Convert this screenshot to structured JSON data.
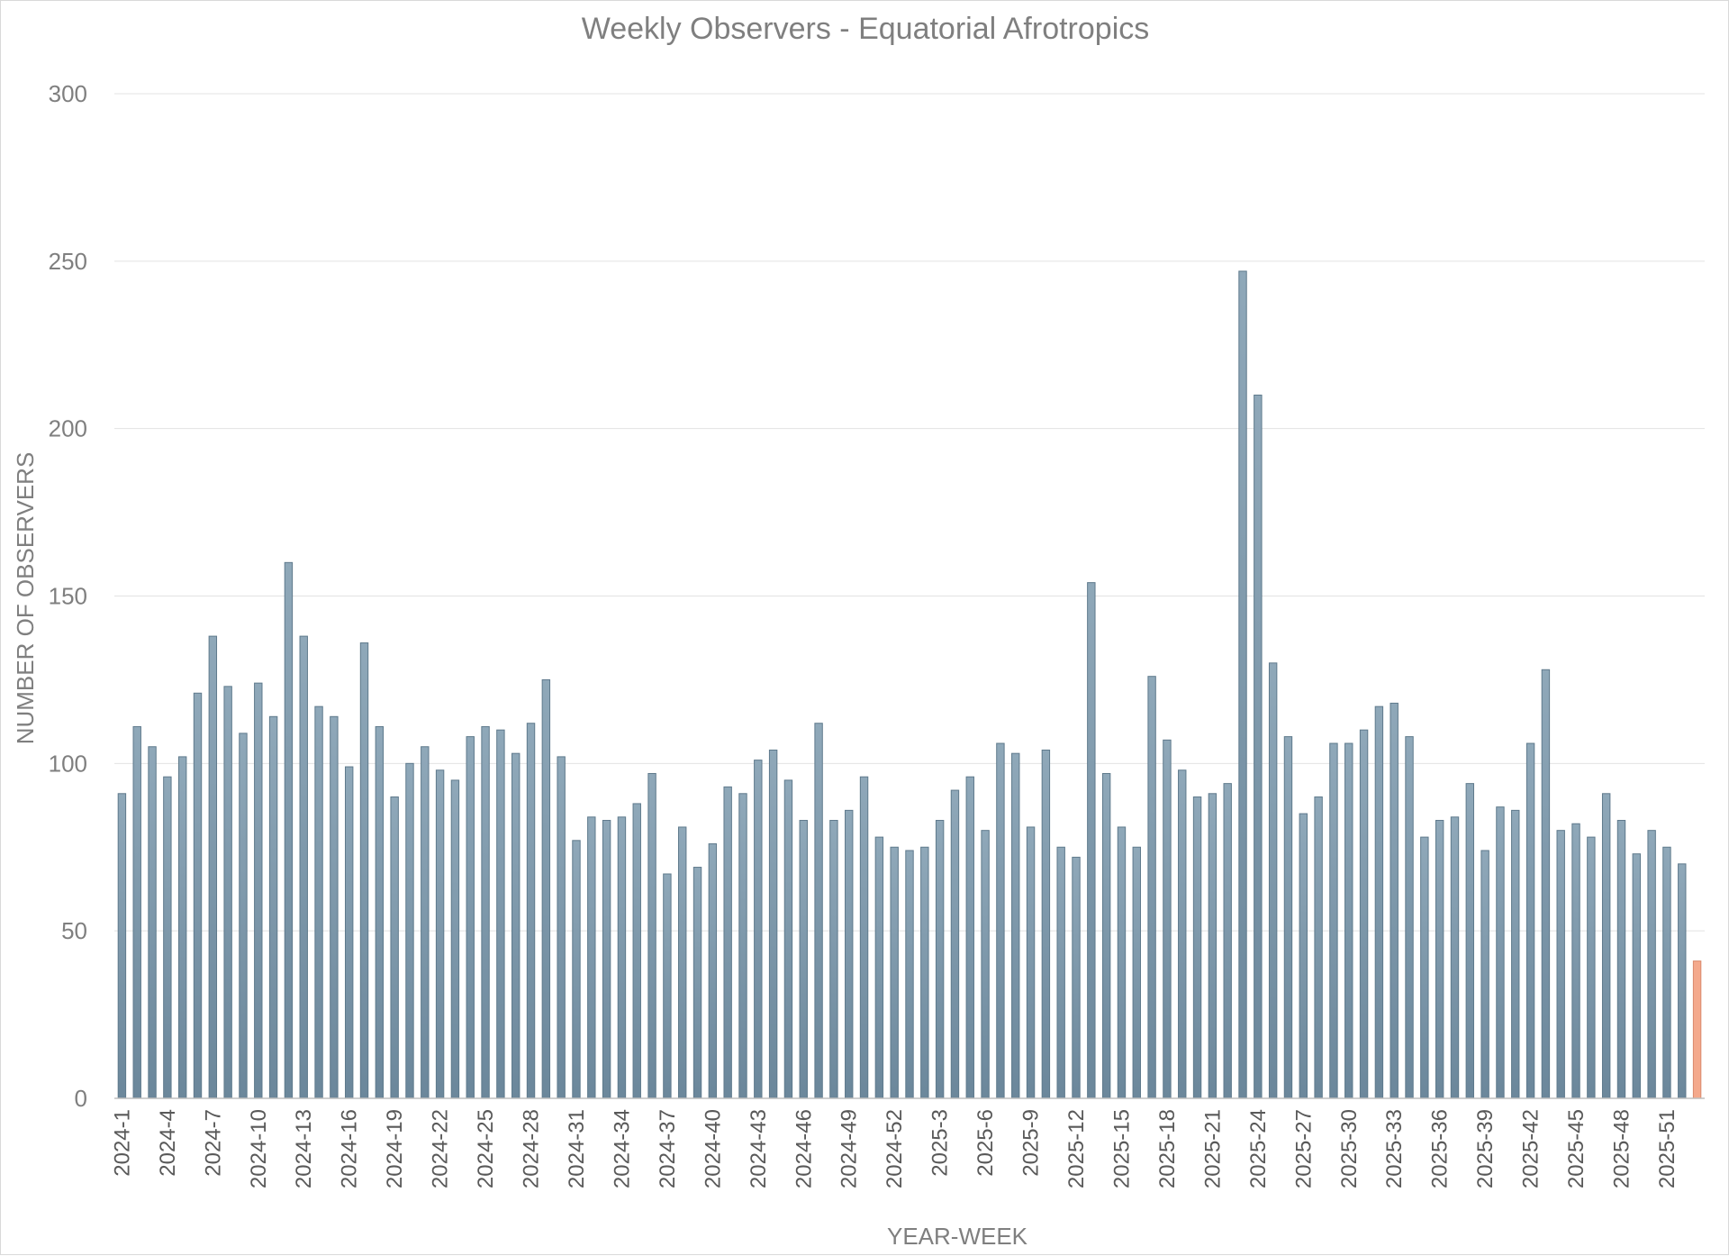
{
  "chart_data": {
    "type": "bar",
    "title": "Weekly Observers - Equatorial Afrotropics",
    "xlabel": "YEAR-WEEK",
    "ylabel": "NUMBER OF OBSERVERS",
    "ylim": [
      0,
      300
    ],
    "yticks": [
      0,
      50,
      100,
      150,
      200,
      250,
      300
    ],
    "grid": true,
    "legend": "none",
    "colors": {
      "bar": "#8fa8b9",
      "bar_dark": "#6b879b",
      "bar_edge": "#5f7a8c",
      "highlight": "#f4a98c",
      "highlight_edge": "#d98a6d"
    },
    "highlight_last": true,
    "categories": [
      "2024-1",
      "2024-2",
      "2024-3",
      "2024-4",
      "2024-5",
      "2024-6",
      "2024-7",
      "2024-8",
      "2024-9",
      "2024-10",
      "2024-11",
      "2024-12",
      "2024-13",
      "2024-14",
      "2024-15",
      "2024-16",
      "2024-17",
      "2024-18",
      "2024-19",
      "2024-20",
      "2024-21",
      "2024-22",
      "2024-23",
      "2024-24",
      "2024-25",
      "2024-26",
      "2024-27",
      "2024-28",
      "2024-29",
      "2024-30",
      "2024-31",
      "2024-32",
      "2024-33",
      "2024-34",
      "2024-35",
      "2024-36",
      "2024-37",
      "2024-38",
      "2024-39",
      "2024-40",
      "2024-41",
      "2024-42",
      "2024-43",
      "2024-44",
      "2024-45",
      "2024-46",
      "2024-47",
      "2024-48",
      "2024-49",
      "2024-50",
      "2024-51",
      "2024-52",
      "2025-1",
      "2025-2",
      "2025-3",
      "2025-4",
      "2025-5",
      "2025-6",
      "2025-7",
      "2025-8",
      "2025-9",
      "2025-10",
      "2025-11",
      "2025-12",
      "2025-13",
      "2025-14",
      "2025-15",
      "2025-16",
      "2025-17",
      "2025-18",
      "2025-19",
      "2025-20",
      "2025-21",
      "2025-22",
      "2025-23",
      "2025-24",
      "2025-25",
      "2025-26",
      "2025-27",
      "2025-28",
      "2025-29",
      "2025-30",
      "2025-31",
      "2025-32",
      "2025-33",
      "2025-34",
      "2025-35",
      "2025-36",
      "2025-37",
      "2025-38",
      "2025-39",
      "2025-40",
      "2025-41",
      "2025-42",
      "2025-43",
      "2025-44",
      "2025-45",
      "2025-46",
      "2025-47",
      "2025-48",
      "2025-49",
      "2025-50",
      "2025-51",
      "2025-52",
      "2026-1"
    ],
    "tick_labels": [
      "2024-1",
      "2024-4",
      "2024-7",
      "2024-10",
      "2024-13",
      "2024-16",
      "2024-19",
      "2024-22",
      "2024-25",
      "2024-28",
      "2024-31",
      "2024-34",
      "2024-37",
      "2024-40",
      "2024-43",
      "2024-46",
      "2024-49",
      "2024-52",
      "2025-3",
      "2025-6",
      "2025-9",
      "2025-12",
      "2025-15",
      "2025-18",
      "2025-21",
      "2025-24",
      "2025-27",
      "2025-30",
      "2025-33",
      "2025-36",
      "2025-39",
      "2025-42",
      "2025-45",
      "2025-48",
      "2025-51"
    ],
    "values": [
      91,
      111,
      105,
      96,
      102,
      121,
      138,
      123,
      109,
      124,
      114,
      160,
      138,
      117,
      114,
      99,
      136,
      111,
      90,
      100,
      105,
      98,
      95,
      108,
      111,
      110,
      103,
      112,
      125,
      102,
      77,
      84,
      83,
      84,
      88,
      97,
      67,
      81,
      69,
      76,
      93,
      91,
      101,
      104,
      95,
      83,
      112,
      83,
      86,
      96,
      78,
      75,
      74,
      75,
      83,
      92,
      96,
      80,
      106,
      103,
      81,
      104,
      75,
      72,
      154,
      97,
      81,
      75,
      126,
      107,
      98,
      90,
      91,
      94,
      247,
      210,
      130,
      108,
      85,
      90,
      106,
      106,
      110,
      117,
      118,
      108,
      78,
      83,
      84,
      94,
      74,
      87,
      86,
      106,
      128,
      80,
      82,
      78,
      91,
      83,
      73,
      80,
      75,
      70,
      41
    ]
  }
}
